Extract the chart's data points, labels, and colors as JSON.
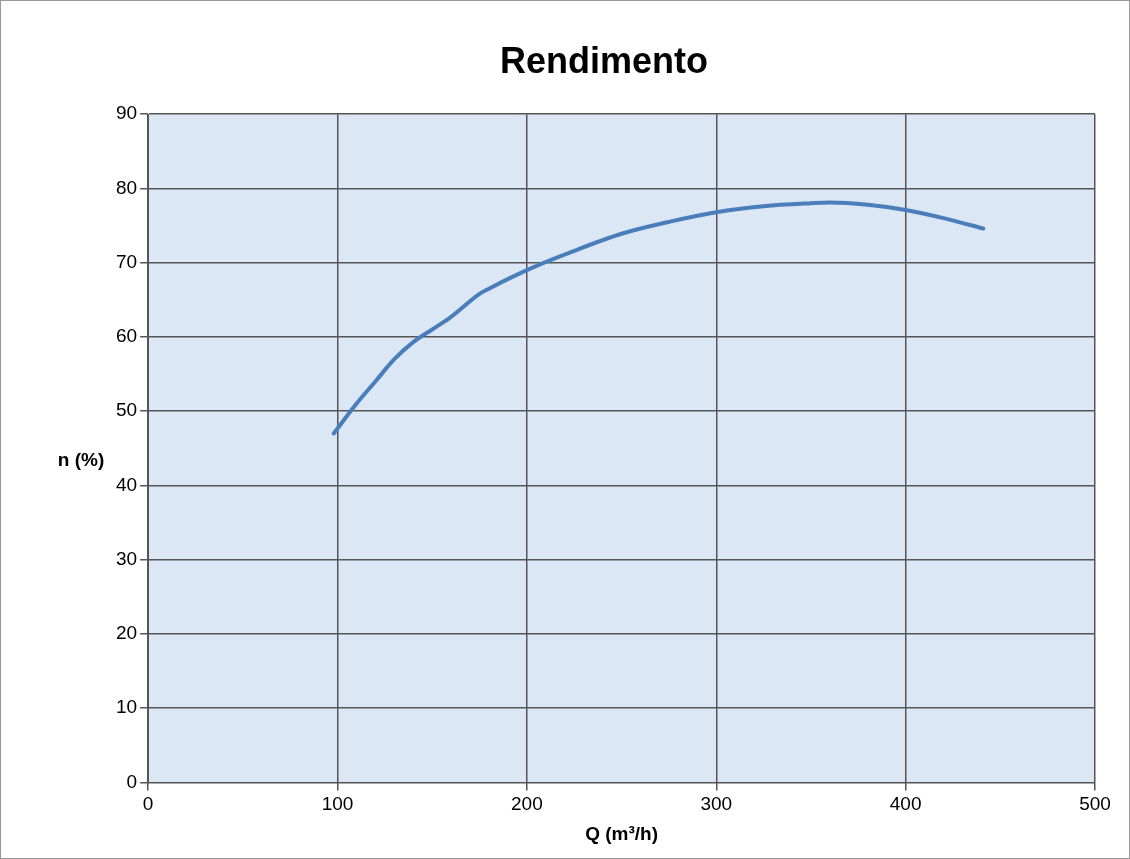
{
  "chart_data": {
    "type": "line",
    "title": "Rendimento",
    "xlabel": "Q (m³/h)",
    "ylabel": "n (%)",
    "xlim": [
      0,
      500
    ],
    "xticks": [
      0,
      100,
      200,
      300,
      400,
      500
    ],
    "ylim": [
      0,
      90
    ],
    "yticks": [
      0,
      10,
      20,
      30,
      40,
      50,
      60,
      70,
      80,
      90
    ],
    "grid": true,
    "marker": "none",
    "line_style": "solid",
    "series": [
      {
        "color": "#4a7ebb",
        "x": [
          98,
          110,
          120,
          130,
          140,
          150,
          160,
          175,
          180,
          200,
          225,
          250,
          275,
          300,
          325,
          350,
          360,
          380,
          400,
          420,
          441
        ],
        "values": [
          47,
          51,
          54,
          57,
          59.3,
          61,
          62.7,
          65.8,
          66.5,
          69,
          71.6,
          73.9,
          75.5,
          76.8,
          77.6,
          78,
          78.1,
          77.8,
          77.1,
          76,
          74.6
        ]
      }
    ]
  }
}
